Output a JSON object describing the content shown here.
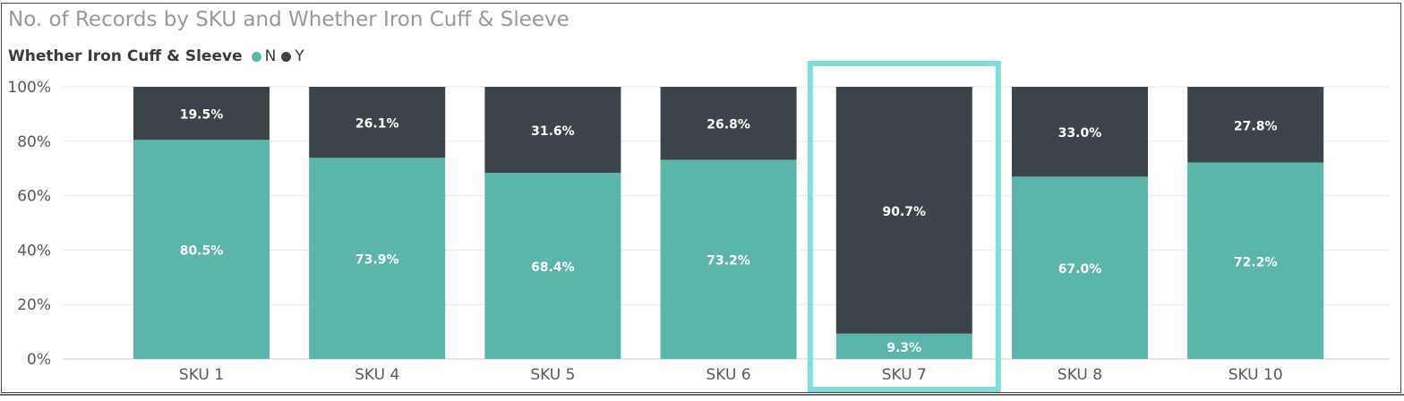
{
  "title": "No. of Records by SKU and Whether Iron Cuff & Sleeve",
  "legend": {
    "title": "Whether Iron Cuff & Sleeve",
    "items": [
      {
        "label": "N",
        "color": "#5bb5aa"
      },
      {
        "label": "Y",
        "color": "#3b4448"
      }
    ]
  },
  "chart_data": {
    "type": "bar",
    "stacked": true,
    "percent": true,
    "title": "No. of Records by SKU and Whether Iron Cuff & Sleeve",
    "categories": [
      "SKU 1",
      "SKU 4",
      "SKU 5",
      "SKU 6",
      "SKU 7",
      "SKU 8",
      "SKU 10"
    ],
    "series": [
      {
        "name": "N",
        "color": "#5bb5aa",
        "values": [
          80.5,
          73.9,
          68.4,
          73.2,
          9.3,
          67.0,
          72.2
        ],
        "labels": [
          "80.5%",
          "73.9%",
          "68.4%",
          "73.2%",
          "9.3%",
          "67.0%",
          "72.2%"
        ]
      },
      {
        "name": "Y",
        "color": "#3b4448",
        "values": [
          19.5,
          26.1,
          31.6,
          26.8,
          90.7,
          33.0,
          27.8
        ],
        "labels": [
          "19.5%",
          "26.1%",
          "31.6%",
          "26.8%",
          "90.7%",
          "33.0%",
          "27.8%"
        ]
      }
    ],
    "yticks": [
      "0%",
      "20%",
      "40%",
      "60%",
      "80%",
      "100%"
    ],
    "ylim": [
      0,
      100
    ],
    "grid": true,
    "legend_position": "top-left",
    "highlighted_category": "SKU 7",
    "highlight_color": "#7fded8"
  }
}
